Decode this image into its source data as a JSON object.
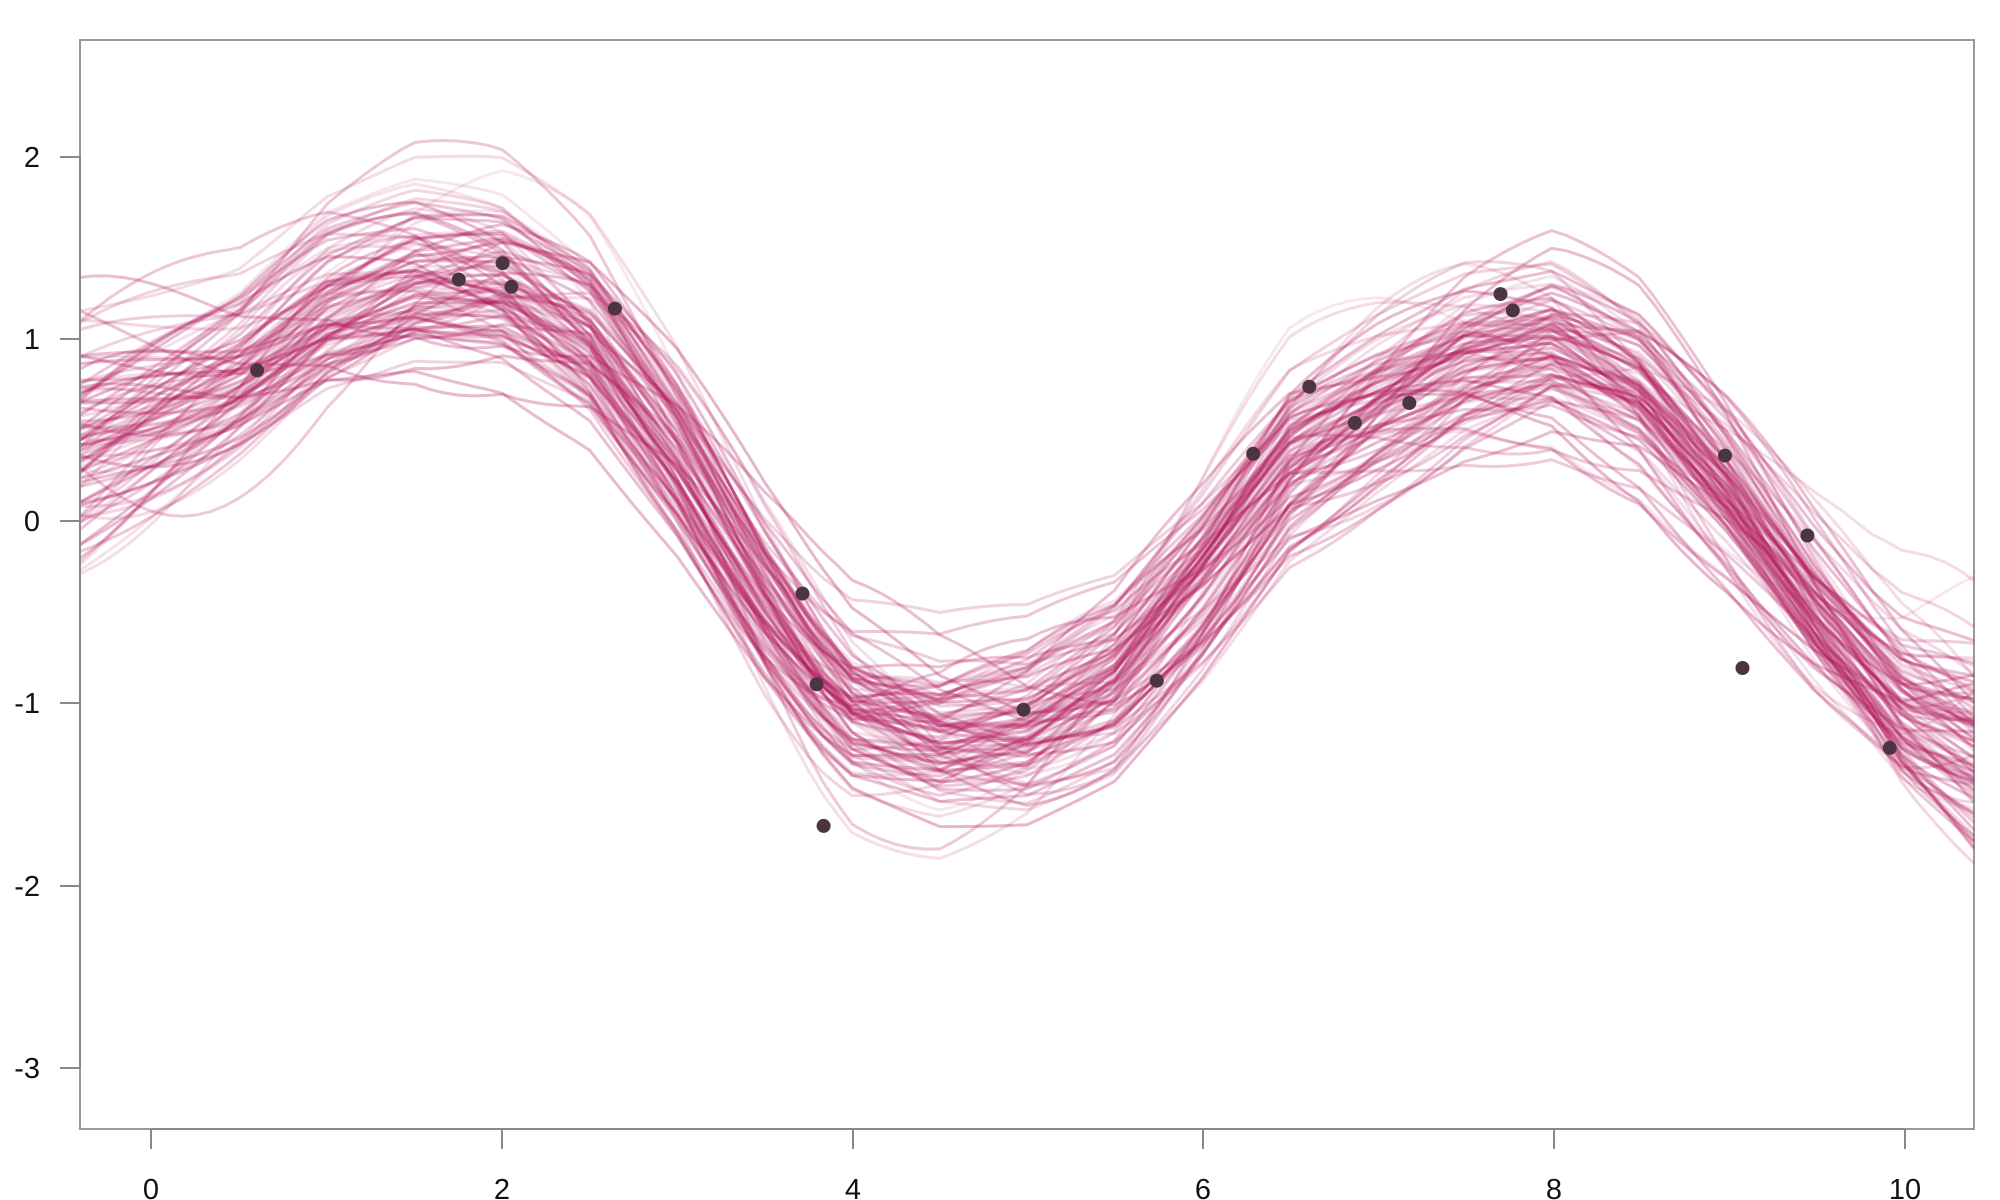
{
  "chart_data": {
    "type": "line",
    "title": "",
    "xlabel": "",
    "ylabel": "",
    "xlim": [
      -0.4,
      10.4
    ],
    "ylim": [
      -3.3,
      2.7
    ],
    "x_ticks": [
      "0",
      "2",
      "4",
      "6",
      "8",
      "10"
    ],
    "y_ticks": [
      "-3",
      "-2",
      "-1",
      "0",
      "1",
      "2"
    ],
    "grid": false,
    "legend": "none",
    "line_color": "#b0145a",
    "point_color": "#4a3540",
    "series_count": 100,
    "mean_curve": {
      "x": [
        -0.4,
        0.5,
        1.0,
        1.5,
        2.0,
        2.5,
        3.0,
        3.5,
        3.8,
        4.0,
        4.5,
        5.0,
        5.5,
        6.0,
        6.5,
        7.0,
        7.5,
        8.0,
        8.5,
        9.0,
        9.5,
        10.0,
        10.4
      ],
      "y": [
        0.5,
        0.9,
        1.25,
        1.4,
        1.35,
        1.05,
        0.4,
        -0.4,
        -0.8,
        -1.0,
        -1.15,
        -1.1,
        -0.85,
        -0.3,
        0.35,
        0.65,
        0.9,
        1.0,
        0.75,
        0.2,
        -0.45,
        -1.0,
        -1.2
      ]
    },
    "points": [
      {
        "x": 0.61,
        "y": 0.88
      },
      {
        "x": 1.76,
        "y": 1.38
      },
      {
        "x": 2.01,
        "y": 1.47
      },
      {
        "x": 2.06,
        "y": 1.34
      },
      {
        "x": 2.65,
        "y": 1.22
      },
      {
        "x": 3.72,
        "y": -0.35
      },
      {
        "x": 3.8,
        "y": -0.85
      },
      {
        "x": 3.84,
        "y": -1.63
      },
      {
        "x": 4.98,
        "y": -0.99
      },
      {
        "x": 5.74,
        "y": -0.83
      },
      {
        "x": 6.29,
        "y": 0.42
      },
      {
        "x": 6.61,
        "y": 0.79
      },
      {
        "x": 6.87,
        "y": 0.59
      },
      {
        "x": 7.18,
        "y": 0.7
      },
      {
        "x": 7.7,
        "y": 1.3
      },
      {
        "x": 7.77,
        "y": 1.21
      },
      {
        "x": 8.98,
        "y": 0.41
      },
      {
        "x": 9.08,
        "y": -0.76
      },
      {
        "x": 9.45,
        "y": -0.03
      },
      {
        "x": 9.92,
        "y": -1.2
      }
    ]
  }
}
